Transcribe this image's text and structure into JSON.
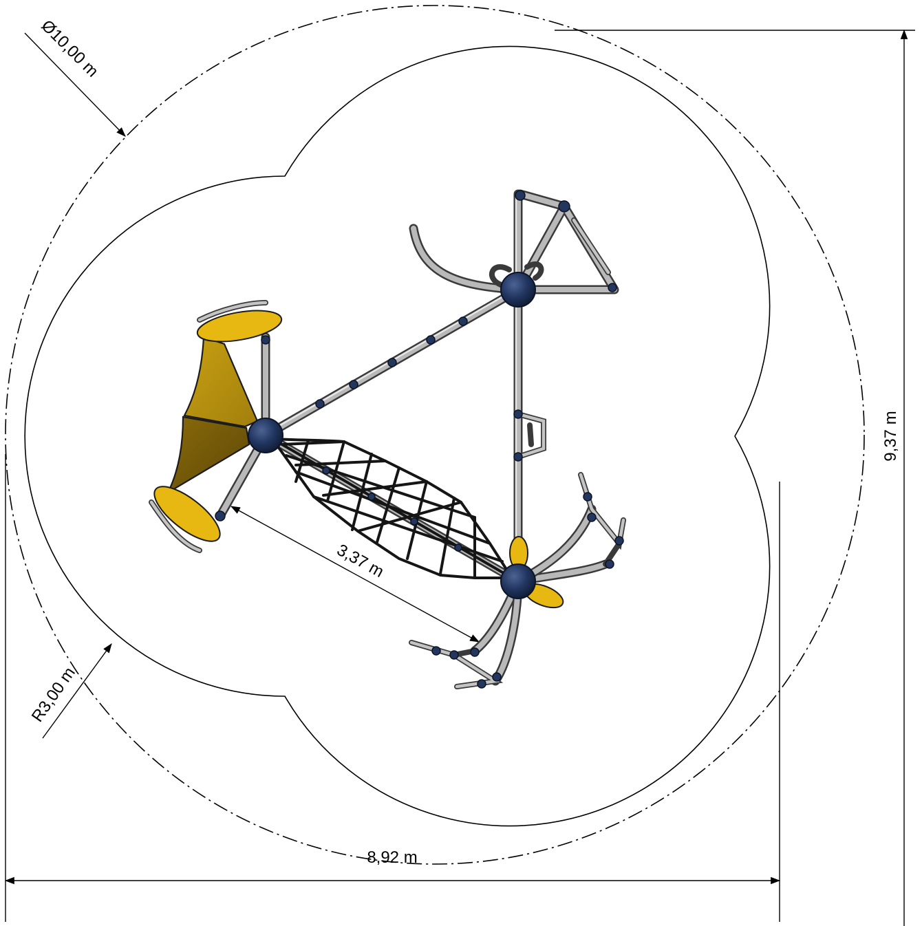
{
  "dimensions": {
    "diameter": "Ø10,00 m",
    "radius": "R3,00 m",
    "height": "9,37 m",
    "width": "8,92 m",
    "distance": "3,37 m"
  },
  "colors": {
    "seat": "#e8b812",
    "panel_light": "#b8900e",
    "panel_dark": "#7a5e08",
    "hub": "#1e2f52",
    "pipe": "#b9b9b9",
    "net": "#151515"
  }
}
